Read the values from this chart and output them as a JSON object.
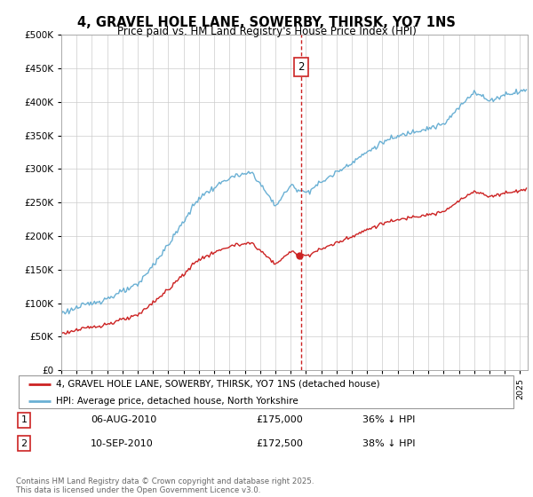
{
  "title": "4, GRAVEL HOLE LANE, SOWERBY, THIRSK, YO7 1NS",
  "subtitle": "Price paid vs. HM Land Registry's House Price Index (HPI)",
  "legend_entry1": "4, GRAVEL HOLE LANE, SOWERBY, THIRSK, YO7 1NS (detached house)",
  "legend_entry2": "HPI: Average price, detached house, North Yorkshire",
  "transaction1_date": "06-AUG-2010",
  "transaction1_price": "£175,000",
  "transaction1_hpi": "36% ↓ HPI",
  "transaction2_date": "10-SEP-2010",
  "transaction2_price": "£172,500",
  "transaction2_hpi": "38% ↓ HPI",
  "footer": "Contains HM Land Registry data © Crown copyright and database right 2025.\nThis data is licensed under the Open Government Licence v3.0.",
  "hpi_color": "#6ab0d4",
  "price_color": "#cc2222",
  "marker_date": 2010.7,
  "dot_date": 2010.58,
  "dot_price": 172500,
  "ylim_min": 0,
  "ylim_max": 500000,
  "xlim_min": 1995,
  "xlim_max": 2025.5,
  "background_color": "#ffffff",
  "grid_color": "#cccccc"
}
